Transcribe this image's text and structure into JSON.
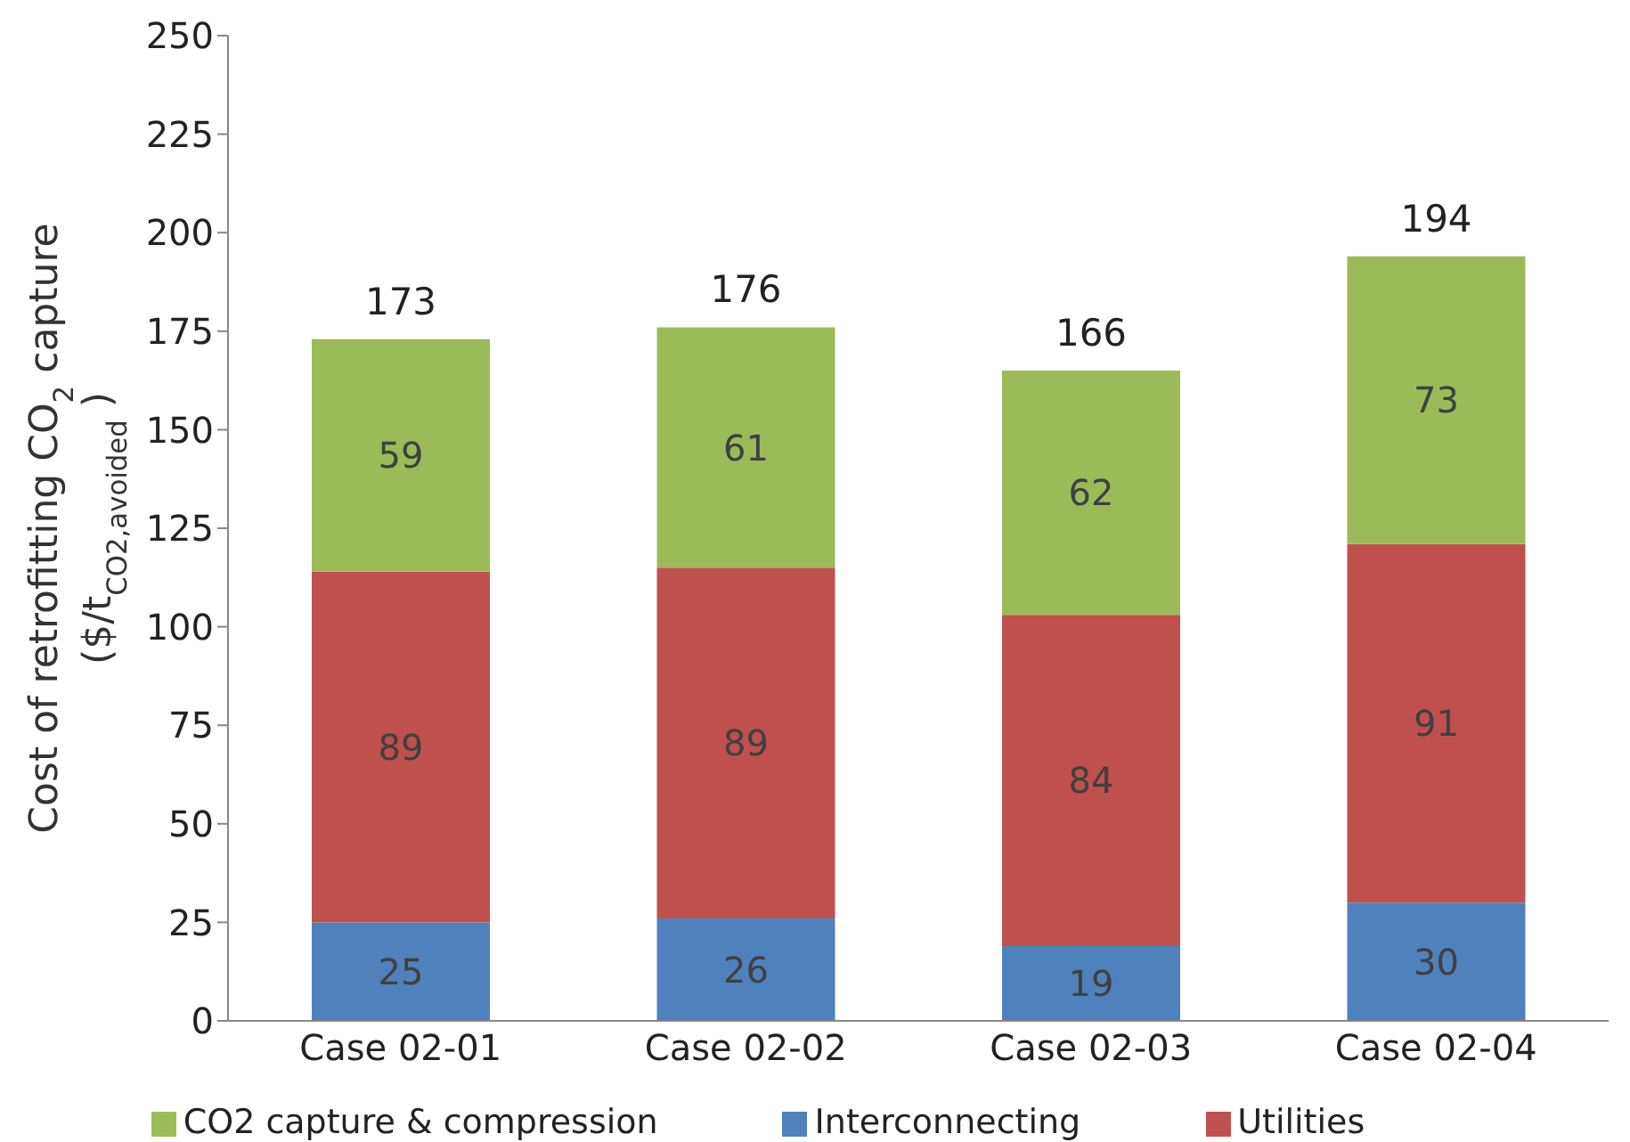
{
  "chart_data": {
    "type": "bar",
    "stacked": true,
    "ylabel": "Cost of retrofitting CO$_{2}$ capture\n($/t$_{CO2,avoided}$)",
    "categories": [
      "Case 02-01",
      "Case 02-02",
      "Case 02-03",
      "Case 02-04"
    ],
    "series": [
      {
        "name": "Interconnecting",
        "color": "#4f81bd",
        "values": [
          25,
          26,
          19,
          30
        ]
      },
      {
        "name": "Utilities",
        "color": "#c0504d",
        "values": [
          89,
          89,
          84,
          91
        ]
      },
      {
        "name": "CO2 capture & compression",
        "color": "#9bbb59",
        "values": [
          59,
          61,
          62,
          73
        ]
      }
    ],
    "data_labels": true,
    "totals": [
      "173",
      "176",
      "166",
      "194"
    ],
    "ylim": [
      0,
      250
    ],
    "yticks": [
      0,
      25,
      50,
      75,
      100,
      125,
      150,
      175,
      200,
      225,
      250
    ],
    "grid": false,
    "legend": "bottom"
  }
}
